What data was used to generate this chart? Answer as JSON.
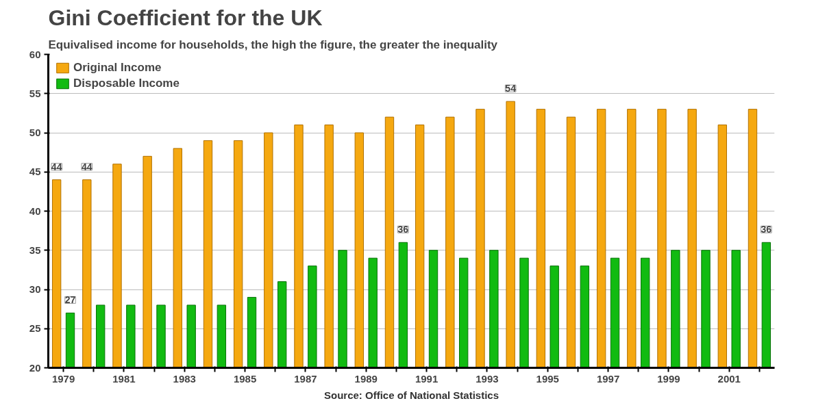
{
  "chart_data": {
    "type": "bar",
    "title": "Gini Coefficient for the UK",
    "subtitle": "Equivalised income for households, the high the figure, the greater the inequality",
    "categories": [
      "1979",
      null,
      "1981",
      null,
      "1983",
      null,
      "1985",
      null,
      "1987",
      null,
      "1989",
      null,
      "1991",
      null,
      "1993",
      null,
      "1995",
      null,
      "1997",
      null,
      "1999",
      null,
      "2001",
      null
    ],
    "series": [
      {
        "name": "Original Income",
        "color": "#f5a810",
        "values": [
          44,
          44,
          46,
          47,
          48,
          49,
          49,
          50,
          51,
          51,
          50,
          52,
          51,
          52,
          53,
          54,
          53,
          52,
          53,
          53,
          53,
          53,
          51,
          53
        ],
        "value_labels": [
          "44",
          "44",
          null,
          null,
          null,
          null,
          null,
          null,
          null,
          null,
          null,
          null,
          null,
          null,
          null,
          "54",
          null,
          null,
          null,
          null,
          null,
          null,
          null,
          null
        ]
      },
      {
        "name": "Disposable Income",
        "color": "#11bb11",
        "values": [
          27,
          28,
          28,
          28,
          28,
          28,
          29,
          31,
          33,
          35,
          34,
          36,
          35,
          34,
          35,
          34,
          33,
          33,
          34,
          34,
          35,
          35,
          35,
          36
        ],
        "value_labels": [
          "27",
          null,
          null,
          null,
          null,
          null,
          null,
          null,
          null,
          null,
          null,
          "36",
          null,
          null,
          null,
          null,
          null,
          null,
          null,
          null,
          null,
          null,
          null,
          "36"
        ]
      }
    ],
    "ylim": [
      20,
      60
    ],
    "yticks": [
      20,
      25,
      30,
      35,
      40,
      45,
      50,
      55,
      60
    ],
    "grid": "y",
    "legend": "top left",
    "annotations": [
      "Source: Office of National Statistics"
    ]
  }
}
